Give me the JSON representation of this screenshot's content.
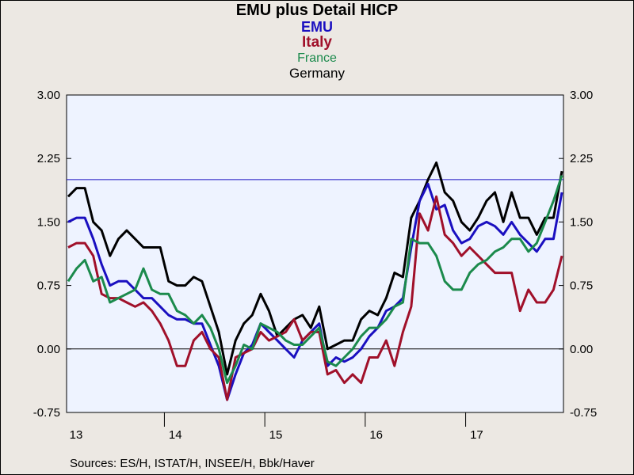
{
  "chart_data": {
    "type": "line",
    "title": "EMU plus Detail HICP",
    "subtitles": [
      {
        "text": "EMU",
        "color": "#1a0fc0"
      },
      {
        "text": "Italy",
        "color": "#a0102a"
      },
      {
        "text": "France",
        "color": "#1b8a4c"
      },
      {
        "text": "Germany",
        "color": "#000000"
      }
    ],
    "ylim": [
      -0.75,
      3.0
    ],
    "y_ticks": [
      "3.00",
      "2.25",
      "1.50",
      "0.75",
      "0.00",
      "-0.75"
    ],
    "y_tick_values": [
      3.0,
      2.25,
      1.5,
      0.75,
      0.0,
      -0.75
    ],
    "x_labels": [
      "13",
      "14",
      "15",
      "16",
      "17"
    ],
    "x_start": "2013-01",
    "reference_lines": [
      2.0,
      0.0
    ],
    "grid": false,
    "series": [
      {
        "name": "Germany",
        "color": "#000000",
        "values": [
          1.8,
          1.9,
          1.9,
          1.5,
          1.4,
          1.1,
          1.3,
          1.4,
          1.3,
          1.2,
          1.2,
          1.2,
          0.8,
          0.75,
          0.75,
          0.85,
          0.8,
          0.5,
          0.2,
          -0.3,
          0.1,
          0.3,
          0.4,
          0.65,
          0.45,
          0.15,
          0.25,
          0.35,
          0.4,
          0.25,
          0.5,
          0.0,
          0.05,
          0.1,
          0.1,
          0.35,
          0.45,
          0.4,
          0.6,
          0.9,
          0.85,
          1.55,
          1.75,
          2.0,
          2.2,
          1.85,
          1.75,
          1.5,
          1.4,
          1.55,
          1.75,
          1.85,
          1.5,
          1.85,
          1.55,
          1.55,
          1.35,
          1.55,
          1.55,
          2.1
        ]
      },
      {
        "name": "EMU",
        "color": "#1a0fc0",
        "values": [
          1.5,
          1.55,
          1.55,
          1.3,
          1.0,
          0.75,
          0.8,
          0.8,
          0.7,
          0.6,
          0.6,
          0.5,
          0.4,
          0.35,
          0.35,
          0.3,
          0.3,
          0.05,
          -0.2,
          -0.6,
          -0.3,
          -0.05,
          0.05,
          0.3,
          0.2,
          0.1,
          0.0,
          -0.1,
          0.1,
          0.2,
          0.3,
          -0.2,
          -0.1,
          -0.15,
          -0.1,
          0.0,
          0.15,
          0.25,
          0.45,
          0.5,
          0.6,
          1.2,
          1.75,
          1.95,
          1.65,
          1.7,
          1.4,
          1.25,
          1.3,
          1.45,
          1.5,
          1.45,
          1.35,
          1.5,
          1.35,
          1.25,
          1.15,
          1.3,
          1.3,
          1.85
        ]
      },
      {
        "name": "Italy",
        "color": "#a0102a",
        "values": [
          1.2,
          1.25,
          1.25,
          1.1,
          0.65,
          0.6,
          0.6,
          0.55,
          0.5,
          0.55,
          0.45,
          0.3,
          0.1,
          -0.2,
          -0.2,
          0.1,
          0.2,
          0.0,
          -0.1,
          -0.6,
          -0.1,
          -0.05,
          0.0,
          0.2,
          0.1,
          0.15,
          0.2,
          0.35,
          0.1,
          0.2,
          0.2,
          -0.3,
          -0.25,
          -0.4,
          -0.3,
          -0.4,
          -0.1,
          -0.1,
          0.1,
          -0.2,
          0.2,
          0.5,
          1.6,
          1.4,
          1.8,
          1.35,
          1.25,
          1.1,
          1.2,
          1.1,
          1.0,
          0.9,
          0.9,
          0.9,
          0.45,
          0.7,
          0.55,
          0.55,
          0.7,
          1.1
        ]
      },
      {
        "name": "France",
        "color": "#1b8a4c",
        "values": [
          0.8,
          0.95,
          1.05,
          0.8,
          0.85,
          0.55,
          0.6,
          0.65,
          0.7,
          0.95,
          0.7,
          0.65,
          0.65,
          0.45,
          0.4,
          0.3,
          0.4,
          0.25,
          0.0,
          -0.4,
          -0.2,
          0.05,
          0.0,
          0.3,
          0.25,
          0.2,
          0.1,
          0.05,
          0.05,
          0.15,
          0.25,
          -0.15,
          -0.2,
          -0.1,
          0.0,
          0.15,
          0.25,
          0.25,
          0.35,
          0.5,
          0.55,
          1.3,
          1.25,
          1.25,
          1.1,
          0.8,
          0.7,
          0.7,
          0.9,
          1.0,
          1.05,
          1.15,
          1.2,
          1.3,
          1.3,
          1.15,
          1.25,
          1.5,
          1.75,
          2.05
        ]
      }
    ]
  },
  "source_text": "Sources:  ES/H, ISTAT/H, INSEE/H, Bbk/Haver"
}
